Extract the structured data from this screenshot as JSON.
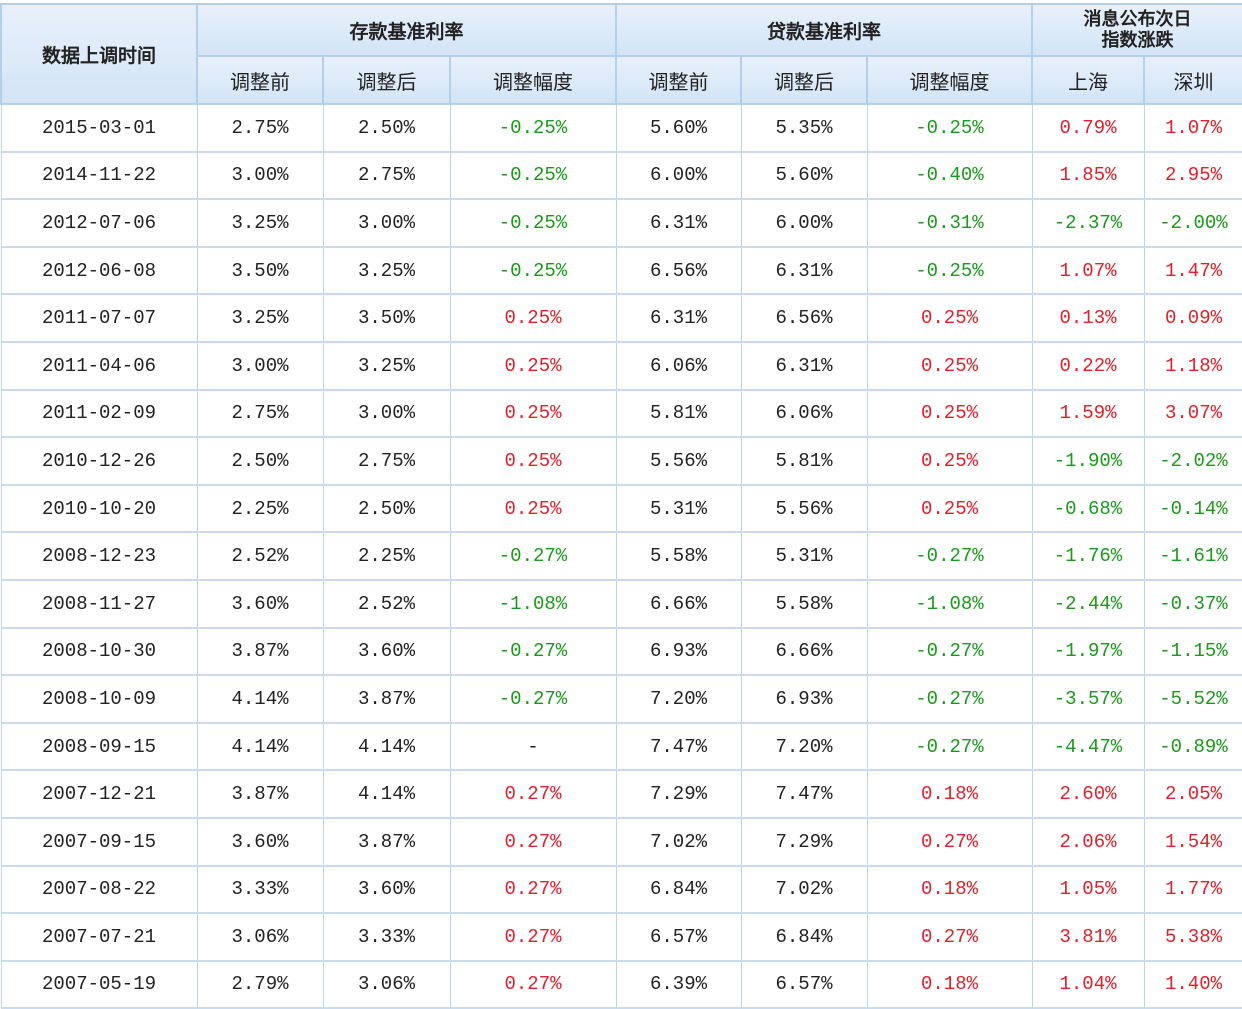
{
  "header": {
    "date_col": "数据上调时间",
    "deposit_group": "存款基准利率",
    "loan_group": "贷款基准利率",
    "index_group_line1": "消息公布次日",
    "index_group_line2": "指数涨跌",
    "before": "调整前",
    "after": "调整后",
    "change": "调整幅度",
    "shanghai": "上海",
    "shenzhen": "深圳"
  },
  "colors": {
    "positive": "#e0202a",
    "negative": "#1a9a1a",
    "header_bg": "#dce9f7"
  },
  "rows": [
    [
      "2015-03-01",
      "2.75%",
      "2.50%",
      "-0.25%",
      "5.60%",
      "5.35%",
      "-0.25%",
      "0.79%",
      "1.07%"
    ],
    [
      "2014-11-22",
      "3.00%",
      "2.75%",
      "-0.25%",
      "6.00%",
      "5.60%",
      "-0.40%",
      "1.85%",
      "2.95%"
    ],
    [
      "2012-07-06",
      "3.25%",
      "3.00%",
      "-0.25%",
      "6.31%",
      "6.00%",
      "-0.31%",
      "-2.37%",
      "-2.00%"
    ],
    [
      "2012-06-08",
      "3.50%",
      "3.25%",
      "-0.25%",
      "6.56%",
      "6.31%",
      "-0.25%",
      "1.07%",
      "1.47%"
    ],
    [
      "2011-07-07",
      "3.25%",
      "3.50%",
      "0.25%",
      "6.31%",
      "6.56%",
      "0.25%",
      "0.13%",
      "0.09%"
    ],
    [
      "2011-04-06",
      "3.00%",
      "3.25%",
      "0.25%",
      "6.06%",
      "6.31%",
      "0.25%",
      "0.22%",
      "1.18%"
    ],
    [
      "2011-02-09",
      "2.75%",
      "3.00%",
      "0.25%",
      "5.81%",
      "6.06%",
      "0.25%",
      "1.59%",
      "3.07%"
    ],
    [
      "2010-12-26",
      "2.50%",
      "2.75%",
      "0.25%",
      "5.56%",
      "5.81%",
      "0.25%",
      "-1.90%",
      "-2.02%"
    ],
    [
      "2010-10-20",
      "2.25%",
      "2.50%",
      "0.25%",
      "5.31%",
      "5.56%",
      "0.25%",
      "-0.68%",
      "-0.14%"
    ],
    [
      "2008-12-23",
      "2.52%",
      "2.25%",
      "-0.27%",
      "5.58%",
      "5.31%",
      "-0.27%",
      "-1.76%",
      "-1.61%"
    ],
    [
      "2008-11-27",
      "3.60%",
      "2.52%",
      "-1.08%",
      "6.66%",
      "5.58%",
      "-1.08%",
      "-2.44%",
      "-0.37%"
    ],
    [
      "2008-10-30",
      "3.87%",
      "3.60%",
      "-0.27%",
      "6.93%",
      "6.66%",
      "-0.27%",
      "-1.97%",
      "-1.15%"
    ],
    [
      "2008-10-09",
      "4.14%",
      "3.87%",
      "-0.27%",
      "7.20%",
      "6.93%",
      "-0.27%",
      "-3.57%",
      "-5.52%"
    ],
    [
      "2008-09-15",
      "4.14%",
      "4.14%",
      "-",
      "7.47%",
      "7.20%",
      "-0.27%",
      "-4.47%",
      "-0.89%"
    ],
    [
      "2007-12-21",
      "3.87%",
      "4.14%",
      "0.27%",
      "7.29%",
      "7.47%",
      "0.18%",
      "2.60%",
      "2.05%"
    ],
    [
      "2007-09-15",
      "3.60%",
      "3.87%",
      "0.27%",
      "7.02%",
      "7.29%",
      "0.27%",
      "2.06%",
      "1.54%"
    ],
    [
      "2007-08-22",
      "3.33%",
      "3.60%",
      "0.27%",
      "6.84%",
      "7.02%",
      "0.18%",
      "1.05%",
      "1.77%"
    ],
    [
      "2007-07-21",
      "3.06%",
      "3.33%",
      "0.27%",
      "6.57%",
      "6.84%",
      "0.27%",
      "3.81%",
      "5.38%"
    ],
    [
      "2007-05-19",
      "2.79%",
      "3.06%",
      "0.27%",
      "6.39%",
      "6.57%",
      "0.18%",
      "1.04%",
      "1.40%"
    ]
  ]
}
